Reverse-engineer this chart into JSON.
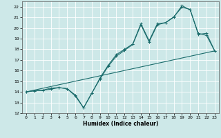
{
  "title": "",
  "xlabel": "Humidex (Indice chaleur)",
  "ylabel": "",
  "xlim": [
    -0.5,
    23.5
  ],
  "ylim": [
    12,
    22.5
  ],
  "xticks": [
    0,
    1,
    2,
    3,
    4,
    5,
    6,
    7,
    8,
    9,
    10,
    11,
    12,
    13,
    14,
    15,
    16,
    17,
    18,
    19,
    20,
    21,
    22,
    23
  ],
  "yticks": [
    12,
    13,
    14,
    15,
    16,
    17,
    18,
    19,
    20,
    21,
    22
  ],
  "background_color": "#cde8e8",
  "grid_color": "#ffffff",
  "line_color": "#1a6b6b",
  "line1_x": [
    0,
    1,
    2,
    3,
    4,
    5,
    6,
    7,
    8,
    9,
    10,
    11,
    12,
    13,
    14,
    15,
    16,
    17,
    18,
    19,
    20,
    21,
    22,
    23
  ],
  "line1_y": [
    14.0,
    14.1,
    14.15,
    14.25,
    14.4,
    14.3,
    13.6,
    12.5,
    13.85,
    15.3,
    16.5,
    17.5,
    18.0,
    18.5,
    20.4,
    18.8,
    20.4,
    20.5,
    21.0,
    22.1,
    21.7,
    19.5,
    19.3,
    17.85
  ],
  "line2_x": [
    0,
    1,
    2,
    3,
    4,
    5,
    6,
    7,
    8,
    9,
    10,
    11,
    12,
    13,
    14,
    15,
    16,
    17,
    18,
    19,
    20,
    21,
    22,
    23
  ],
  "line2_y": [
    14.0,
    14.1,
    14.15,
    14.35,
    14.4,
    14.3,
    13.7,
    12.5,
    13.9,
    15.2,
    16.4,
    17.35,
    17.9,
    18.45,
    20.3,
    18.7,
    20.3,
    20.5,
    21.05,
    21.95,
    21.75,
    19.4,
    19.5,
    17.85
  ],
  "line3_x": [
    0,
    23
  ],
  "line3_y": [
    14.0,
    17.85
  ],
  "marker": "+",
  "markersize": 3,
  "linewidth": 0.8
}
